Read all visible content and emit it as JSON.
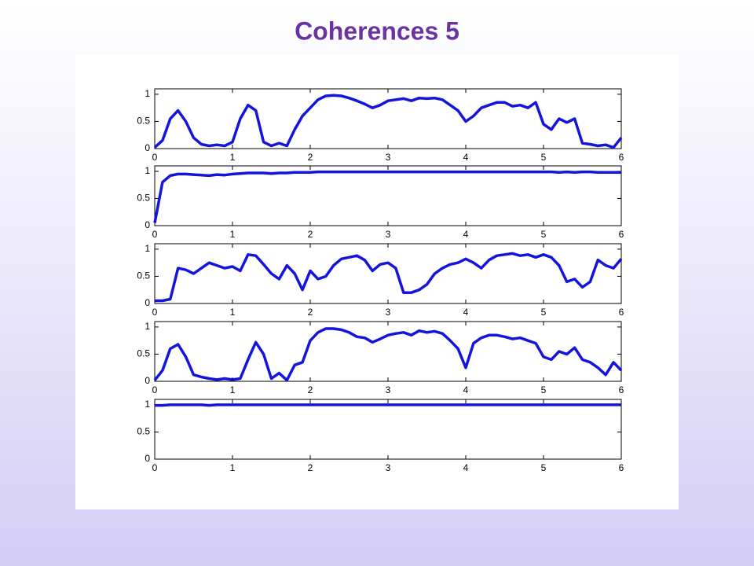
{
  "title": "Coherences 5",
  "chart_data": [
    {
      "type": "line",
      "color": "#1414dc",
      "x": [
        0,
        0.1,
        0.2,
        0.3,
        0.4,
        0.5,
        0.6,
        0.7,
        0.8,
        0.9,
        1,
        1.1,
        1.2,
        1.3,
        1.4,
        1.5,
        1.6,
        1.7,
        1.8,
        1.9,
        2,
        2.1,
        2.2,
        2.3,
        2.4,
        2.5,
        2.6,
        2.7,
        2.8,
        2.9,
        3,
        3.1,
        3.2,
        3.3,
        3.4,
        3.5,
        3.6,
        3.7,
        3.8,
        3.9,
        4,
        4.1,
        4.2,
        4.3,
        4.4,
        4.5,
        4.6,
        4.7,
        4.8,
        4.9,
        5,
        5.1,
        5.2,
        5.3,
        5.4,
        5.5,
        5.6,
        5.7,
        5.8,
        5.9,
        6
      ],
      "values": [
        0.02,
        0.15,
        0.55,
        0.7,
        0.5,
        0.2,
        0.08,
        0.05,
        0.07,
        0.05,
        0.12,
        0.55,
        0.8,
        0.7,
        0.12,
        0.05,
        0.1,
        0.05,
        0.35,
        0.6,
        0.75,
        0.9,
        0.97,
        0.98,
        0.97,
        0.93,
        0.88,
        0.82,
        0.75,
        0.8,
        0.88,
        0.9,
        0.92,
        0.88,
        0.93,
        0.92,
        0.93,
        0.9,
        0.8,
        0.7,
        0.5,
        0.6,
        0.75,
        0.8,
        0.85,
        0.85,
        0.78,
        0.8,
        0.75,
        0.85,
        0.45,
        0.35,
        0.55,
        0.48,
        0.55,
        0.1,
        0.08,
        0.05,
        0.07,
        0.02,
        0.2
      ],
      "xlim": [
        0,
        6
      ],
      "ylim": [
        0,
        1.1
      ],
      "xticks": [
        0,
        1,
        2,
        3,
        4,
        5,
        6
      ],
      "yticks": [
        0,
        0.5,
        1
      ]
    },
    {
      "type": "line",
      "color": "#1414dc",
      "x": [
        0,
        0.1,
        0.2,
        0.3,
        0.4,
        0.5,
        0.6,
        0.7,
        0.8,
        0.9,
        1,
        1.1,
        1.2,
        1.3,
        1.4,
        1.5,
        1.6,
        1.7,
        1.8,
        1.9,
        2,
        2.1,
        2.2,
        2.3,
        2.4,
        2.5,
        2.6,
        2.7,
        2.8,
        2.9,
        3,
        3.1,
        3.2,
        3.3,
        3.4,
        3.5,
        3.6,
        3.7,
        3.8,
        3.9,
        4,
        4.1,
        4.2,
        4.3,
        4.4,
        4.5,
        4.6,
        4.7,
        4.8,
        4.9,
        5,
        5.1,
        5.2,
        5.3,
        5.4,
        5.5,
        5.6,
        5.7,
        5.8,
        5.9,
        6
      ],
      "values": [
        0.05,
        0.8,
        0.92,
        0.95,
        0.95,
        0.94,
        0.93,
        0.92,
        0.94,
        0.93,
        0.95,
        0.96,
        0.97,
        0.97,
        0.97,
        0.96,
        0.97,
        0.97,
        0.98,
        0.98,
        0.98,
        0.99,
        0.99,
        0.99,
        0.99,
        0.99,
        0.99,
        0.99,
        0.99,
        0.99,
        0.99,
        0.99,
        0.99,
        0.99,
        0.99,
        0.99,
        0.99,
        0.99,
        0.99,
        0.99,
        0.99,
        0.99,
        0.99,
        0.99,
        0.99,
        0.99,
        0.99,
        0.99,
        0.99,
        0.99,
        0.99,
        0.99,
        0.98,
        0.99,
        0.98,
        0.99,
        0.99,
        0.98,
        0.98,
        0.98,
        0.98
      ],
      "xlim": [
        0,
        6
      ],
      "ylim": [
        0,
        1.1
      ],
      "xticks": [
        0,
        1,
        2,
        3,
        4,
        5,
        6
      ],
      "yticks": [
        0,
        0.5,
        1
      ]
    },
    {
      "type": "line",
      "color": "#1414dc",
      "x": [
        0,
        0.1,
        0.2,
        0.3,
        0.4,
        0.5,
        0.6,
        0.7,
        0.8,
        0.9,
        1,
        1.1,
        1.2,
        1.3,
        1.4,
        1.5,
        1.6,
        1.7,
        1.8,
        1.9,
        2,
        2.1,
        2.2,
        2.3,
        2.4,
        2.5,
        2.6,
        2.7,
        2.8,
        2.9,
        3,
        3.1,
        3.2,
        3.3,
        3.4,
        3.5,
        3.6,
        3.7,
        3.8,
        3.9,
        4,
        4.1,
        4.2,
        4.3,
        4.4,
        4.5,
        4.6,
        4.7,
        4.8,
        4.9,
        5,
        5.1,
        5.2,
        5.3,
        5.4,
        5.5,
        5.6,
        5.7,
        5.8,
        5.9,
        6
      ],
      "values": [
        0.05,
        0.05,
        0.08,
        0.65,
        0.62,
        0.55,
        0.65,
        0.75,
        0.7,
        0.65,
        0.68,
        0.6,
        0.9,
        0.88,
        0.72,
        0.55,
        0.45,
        0.7,
        0.55,
        0.25,
        0.6,
        0.45,
        0.5,
        0.7,
        0.82,
        0.85,
        0.88,
        0.8,
        0.6,
        0.72,
        0.75,
        0.65,
        0.2,
        0.2,
        0.25,
        0.35,
        0.55,
        0.65,
        0.72,
        0.75,
        0.82,
        0.75,
        0.65,
        0.8,
        0.88,
        0.9,
        0.92,
        0.88,
        0.9,
        0.85,
        0.9,
        0.85,
        0.7,
        0.4,
        0.45,
        0.3,
        0.4,
        0.8,
        0.7,
        0.65,
        0.82
      ],
      "xlim": [
        0,
        6
      ],
      "ylim": [
        0,
        1.1
      ],
      "xticks": [
        0,
        1,
        2,
        3,
        4,
        5,
        6
      ],
      "yticks": [
        0,
        0.5,
        1
      ]
    },
    {
      "type": "line",
      "color": "#1414dc",
      "x": [
        0,
        0.1,
        0.2,
        0.3,
        0.4,
        0.5,
        0.6,
        0.7,
        0.8,
        0.9,
        1,
        1.1,
        1.2,
        1.3,
        1.4,
        1.5,
        1.6,
        1.7,
        1.8,
        1.9,
        2,
        2.1,
        2.2,
        2.3,
        2.4,
        2.5,
        2.6,
        2.7,
        2.8,
        2.9,
        3,
        3.1,
        3.2,
        3.3,
        3.4,
        3.5,
        3.6,
        3.7,
        3.8,
        3.9,
        4,
        4.1,
        4.2,
        4.3,
        4.4,
        4.5,
        4.6,
        4.7,
        4.8,
        4.9,
        5,
        5.1,
        5.2,
        5.3,
        5.4,
        5.5,
        5.6,
        5.7,
        5.8,
        5.9,
        6
      ],
      "values": [
        0.02,
        0.2,
        0.6,
        0.68,
        0.45,
        0.12,
        0.08,
        0.05,
        0.03,
        0.05,
        0.03,
        0.05,
        0.4,
        0.72,
        0.5,
        0.05,
        0.15,
        0.02,
        0.3,
        0.35,
        0.75,
        0.9,
        0.97,
        0.97,
        0.95,
        0.9,
        0.82,
        0.8,
        0.72,
        0.78,
        0.85,
        0.88,
        0.9,
        0.85,
        0.93,
        0.9,
        0.92,
        0.88,
        0.75,
        0.6,
        0.25,
        0.7,
        0.8,
        0.85,
        0.85,
        0.82,
        0.78,
        0.8,
        0.75,
        0.7,
        0.45,
        0.4,
        0.55,
        0.5,
        0.62,
        0.4,
        0.35,
        0.25,
        0.12,
        0.35,
        0.2
      ],
      "xlim": [
        0,
        6
      ],
      "ylim": [
        0,
        1.1
      ],
      "xticks": [
        0,
        1,
        2,
        3,
        4,
        5,
        6
      ],
      "yticks": [
        0,
        0.5,
        1
      ]
    },
    {
      "type": "line",
      "color": "#1414dc",
      "x": [
        0,
        0.1,
        0.2,
        0.3,
        0.4,
        0.5,
        0.6,
        0.7,
        0.8,
        0.9,
        1,
        1.1,
        1.2,
        1.3,
        1.4,
        1.5,
        1.6,
        1.7,
        1.8,
        1.9,
        2,
        2.1,
        2.2,
        2.3,
        2.4,
        2.5,
        2.6,
        2.7,
        2.8,
        2.9,
        3,
        3.1,
        3.2,
        3.3,
        3.4,
        3.5,
        3.6,
        3.7,
        3.8,
        3.9,
        4,
        4.1,
        4.2,
        4.3,
        4.4,
        4.5,
        4.6,
        4.7,
        4.8,
        4.9,
        5,
        5.1,
        5.2,
        5.3,
        5.4,
        5.5,
        5.6,
        5.7,
        5.8,
        5.9,
        6
      ],
      "values": [
        0.99,
        0.99,
        1,
        1,
        1,
        1,
        1,
        0.99,
        1,
        1,
        1,
        1,
        1,
        1,
        1,
        1,
        1,
        1,
        1,
        1,
        1,
        1,
        1,
        1,
        1,
        1,
        1,
        1,
        1,
        1,
        1,
        1,
        1,
        1,
        1,
        1,
        1,
        1,
        1,
        1,
        1,
        1,
        1,
        1,
        1,
        1,
        1,
        1,
        1,
        1,
        1,
        1,
        1,
        1,
        1,
        1,
        1,
        1,
        1,
        1,
        1
      ],
      "xlim": [
        0,
        6
      ],
      "ylim": [
        0,
        1.1
      ],
      "xticks": [
        0,
        1,
        2,
        3,
        4,
        5,
        6
      ],
      "yticks": [
        0,
        0.5,
        1
      ]
    }
  ]
}
